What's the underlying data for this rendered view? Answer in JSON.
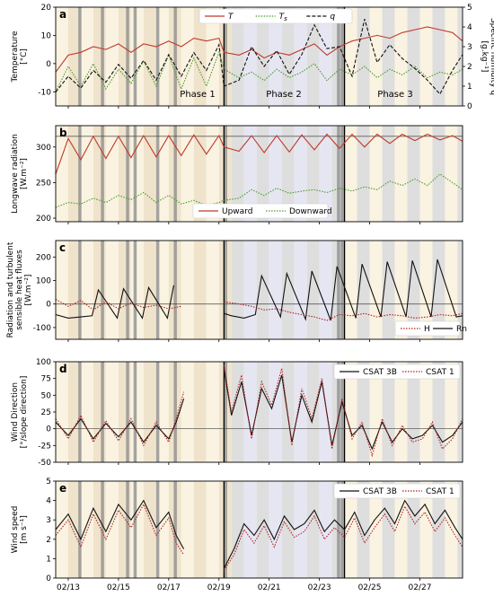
{
  "colors": {
    "red": "#c0392b",
    "green": "#4a9a2f",
    "black": "#111111",
    "darkred_dotted": "#b22222",
    "shade_dark": "#8f8f8f",
    "shade_light_tan": "#efe3cc",
    "shade_cream": "#faf3e1",
    "shade_lavender": "#e6e6f3",
    "shade_grey": "#dedede"
  },
  "x_ticks": [
    "02/13",
    "02/15",
    "02/17",
    "02/19",
    "02/21",
    "02/23",
    "02/25",
    "02/27"
  ],
  "chart_data": [
    {
      "panel": "a",
      "type": "line",
      "ylabel": "Temperature\n[°C]",
      "ylabel2": "Specific humidity q\n[g.kg⁻¹]",
      "ylim": [
        -15,
        20
      ],
      "yticks": [
        -10,
        0,
        10,
        20
      ],
      "ylim2": [
        0,
        5
      ],
      "yticks2": [
        0,
        1,
        2,
        3,
        4,
        5
      ],
      "xlim": [
        12.5,
        28.7
      ],
      "legend": [
        "T",
        "Ts",
        "q"
      ],
      "legend_position": "top-center",
      "annotations": [
        "Phase 1",
        "Phase 2",
        "Phase 3"
      ],
      "series": [
        {
          "name": "T",
          "style": "solid",
          "color": "red",
          "x": [
            12.5,
            13,
            13.5,
            14,
            14.5,
            15,
            15.5,
            16,
            16.5,
            17,
            17.5,
            18,
            18.5,
            19,
            19.2,
            19.8,
            20.3,
            20.8,
            21.3,
            21.8,
            22.3,
            22.8,
            23.3,
            23.8,
            24.3,
            24.8,
            25.3,
            25.8,
            26.3,
            26.8,
            27.3,
            27.8,
            28.3,
            28.7
          ],
          "values": [
            -3,
            3,
            4,
            6,
            5,
            7,
            4,
            7,
            6,
            8,
            6,
            9,
            8,
            9,
            4,
            3,
            5,
            2,
            4,
            3,
            5,
            7,
            3,
            6,
            8,
            9,
            10,
            9,
            11,
            12,
            13,
            12,
            11,
            8
          ]
        },
        {
          "name": "Ts",
          "style": "dotted",
          "color": "green",
          "x": [
            12.5,
            13,
            13.5,
            14,
            14.5,
            15,
            15.5,
            16,
            16.5,
            17,
            17.5,
            18,
            18.5,
            19,
            19.2,
            19.8,
            20.3,
            20.8,
            21.3,
            21.8,
            22.3,
            22.8,
            23.3,
            23.8,
            24.3,
            24.8,
            25.3,
            25.8,
            26.3,
            26.8,
            27.3,
            27.8,
            28.3,
            28.7
          ],
          "values": [
            -10,
            -1,
            -8,
            0,
            -9,
            -2,
            -7,
            1,
            -8,
            3,
            -9,
            2,
            -8,
            4,
            -2,
            -5,
            -3,
            -6,
            -2,
            -5,
            -3,
            0,
            -6,
            -2,
            -4,
            -1,
            -5,
            -2,
            -4,
            -1,
            -5,
            -3,
            -4,
            -2
          ]
        },
        {
          "name": "q",
          "style": "dashed",
          "color": "black",
          "x": [
            12.5,
            13,
            13.5,
            14,
            14.5,
            15,
            15.5,
            16,
            16.5,
            17,
            17.5,
            18,
            18.5,
            19,
            19.2,
            19.8,
            20.3,
            20.8,
            21.3,
            21.8,
            22.3,
            22.8,
            23.3,
            23.8,
            24.3,
            24.8,
            25.3,
            25.8,
            26.3,
            26.8,
            27.3,
            27.8,
            28.3,
            28.7
          ],
          "values": [
            0.7,
            1.5,
            0.9,
            1.8,
            1.2,
            2.1,
            1.4,
            2.3,
            1.3,
            2.6,
            1.5,
            2.7,
            1.8,
            3.1,
            1.0,
            1.3,
            3.0,
            2.0,
            2.8,
            1.6,
            2.6,
            4.1,
            2.9,
            3.0,
            1.5,
            4.4,
            2.2,
            3.1,
            2.4,
            1.9,
            1.3,
            0.6,
            1.8,
            2.6
          ]
        }
      ]
    },
    {
      "panel": "b",
      "type": "line",
      "ylabel": "Longwave radiation\n[W.m⁻²]",
      "ylim": [
        195,
        330
      ],
      "yticks": [
        200,
        250,
        300
      ],
      "xlim": [
        12.5,
        28.7
      ],
      "hline": 315,
      "legend": [
        "Upward",
        "Downward"
      ],
      "legend_position": "bottom-right",
      "series": [
        {
          "name": "Upward",
          "style": "solid",
          "color": "red",
          "x": [
            12.5,
            13,
            13.5,
            14,
            14.5,
            15,
            15.5,
            16,
            16.5,
            17,
            17.5,
            18,
            18.5,
            19,
            19.2,
            19.8,
            20.3,
            20.8,
            21.3,
            21.8,
            22.3,
            22.8,
            23.3,
            23.8,
            24.3,
            24.8,
            25.3,
            25.8,
            26.3,
            26.8,
            27.3,
            27.8,
            28.3,
            28.7
          ],
          "values": [
            262,
            312,
            282,
            315,
            284,
            315,
            285,
            316,
            286,
            316,
            288,
            317,
            290,
            316,
            300,
            294,
            316,
            292,
            316,
            293,
            317,
            296,
            318,
            298,
            318,
            300,
            318,
            305,
            318,
            309,
            318,
            310,
            316,
            308
          ]
        },
        {
          "name": "Downward",
          "style": "dotted",
          "color": "green",
          "x": [
            12.5,
            13,
            13.5,
            14,
            14.5,
            15,
            15.5,
            16,
            16.5,
            17,
            17.5,
            18,
            18.5,
            19,
            19.2,
            19.8,
            20.3,
            20.8,
            21.3,
            21.8,
            22.3,
            22.8,
            23.3,
            23.8,
            24.3,
            24.8,
            25.3,
            25.8,
            26.3,
            26.8,
            27.3,
            27.8,
            28.3,
            28.7
          ],
          "values": [
            215,
            222,
            220,
            228,
            222,
            232,
            226,
            236,
            222,
            232,
            220,
            225,
            218,
            222,
            225,
            228,
            240,
            232,
            242,
            235,
            238,
            240,
            236,
            242,
            238,
            244,
            240,
            252,
            246,
            255,
            246,
            262,
            250,
            240
          ]
        }
      ]
    },
    {
      "panel": "c",
      "type": "line",
      "ylabel": "Radiation and turbulent\nsensible heat fluxes\n[W.m⁻²]",
      "ylim": [
        -150,
        270
      ],
      "yticks": [
        -100,
        0,
        100,
        200
      ],
      "xlim": [
        12.5,
        28.7
      ],
      "hline": 0,
      "legend": [
        "H",
        "Rn"
      ],
      "legend_position": "bottom-right",
      "series": [
        {
          "name": "Rn",
          "style": "solid",
          "color": "black",
          "x": [
            12.5,
            13.0,
            13.5,
            13.95,
            14.2,
            14.95,
            15.2,
            15.95,
            16.2,
            16.95,
            17.2,
            17.95,
            18.2,
            18.95,
            19.2,
            19.5,
            20.0,
            20.45,
            20.7,
            21.45,
            21.7,
            22.45,
            22.7,
            23.45,
            23.7,
            24.45,
            24.7,
            25.45,
            25.7,
            26.45,
            26.7,
            27.45,
            27.7,
            28.45,
            28.7
          ],
          "values": [
            -45,
            -60,
            -55,
            -50,
            60,
            -60,
            65,
            -60,
            70,
            -60,
            80,
            -55,
            100,
            -50,
            -40,
            -50,
            -60,
            -45,
            120,
            -55,
            130,
            -65,
            140,
            -70,
            160,
            -60,
            170,
            -55,
            180,
            -55,
            185,
            -55,
            190,
            -55,
            -50
          ]
        },
        {
          "name": "H",
          "style": "dotted",
          "color": "darkred_dotted",
          "x": [
            12.5,
            13.0,
            13.5,
            14.0,
            14.5,
            15.0,
            15.5,
            16.0,
            16.5,
            17.0,
            17.5,
            18.0,
            18.5,
            19.0,
            19.2,
            19.8,
            20.3,
            20.8,
            21.3,
            21.8,
            22.3,
            22.8,
            23.3,
            23.8,
            24.3,
            24.8,
            25.3,
            25.8,
            26.3,
            26.8,
            27.3,
            27.8,
            28.3,
            28.7
          ],
          "values": [
            20,
            -10,
            15,
            -25,
            10,
            -20,
            5,
            -15,
            -5,
            -20,
            -10,
            -15,
            -5,
            -20,
            10,
            0,
            -10,
            -25,
            -20,
            -35,
            -45,
            -55,
            -70,
            -45,
            -50,
            -40,
            -55,
            -45,
            -50,
            -60,
            -55,
            -45,
            -50,
            -40
          ]
        }
      ]
    },
    {
      "panel": "d",
      "type": "line",
      "ylabel": "Wind Direction\n[°/slope direction]",
      "ylim": [
        -50,
        100
      ],
      "yticks": [
        -50,
        -25,
        0,
        25,
        50,
        75,
        100
      ],
      "xlim": [
        12.5,
        28.7
      ],
      "hline": 0,
      "legend": [
        "CSAT 3B",
        "CSAT 1"
      ],
      "legend_position": "top-right",
      "series": [
        {
          "name": "CSAT 3B",
          "style": "solid",
          "color": "black",
          "x": [
            12.5,
            13,
            13.5,
            14,
            14.5,
            15,
            15.5,
            16,
            16.5,
            17,
            17.3,
            17.6,
            19.2,
            19.5,
            19.9,
            20.3,
            20.7,
            21.1,
            21.5,
            21.9,
            22.3,
            22.7,
            23.1,
            23.5,
            23.9,
            24.3,
            24.7,
            25.1,
            25.5,
            25.9,
            26.3,
            26.7,
            27.1,
            27.5,
            27.9,
            28.3,
            28.7
          ],
          "values": [
            10,
            -10,
            15,
            -15,
            8,
            -12,
            10,
            -20,
            5,
            -15,
            10,
            45,
            90,
            20,
            70,
            -10,
            60,
            30,
            80,
            -20,
            50,
            10,
            70,
            -25,
            40,
            -10,
            5,
            -30,
            10,
            -20,
            0,
            -15,
            -10,
            5,
            -20,
            -10,
            10
          ]
        },
        {
          "name": "CSAT 1",
          "style": "dotted",
          "color": "darkred_dotted",
          "x": [
            12.5,
            13,
            13.5,
            14,
            14.5,
            15,
            15.5,
            16,
            16.5,
            17,
            17.3,
            17.6,
            19.2,
            19.5,
            19.9,
            20.3,
            20.7,
            21.1,
            21.5,
            21.9,
            22.3,
            22.7,
            23.1,
            23.5,
            23.9,
            24.3,
            24.7,
            25.1,
            25.5,
            25.9,
            26.3,
            26.7,
            27.1,
            27.5,
            27.9,
            28.3,
            28.7
          ],
          "values": [
            15,
            -15,
            20,
            -20,
            12,
            -18,
            15,
            -25,
            10,
            -20,
            15,
            55,
            95,
            25,
            80,
            -15,
            70,
            35,
            90,
            -25,
            60,
            15,
            75,
            -30,
            45,
            -15,
            10,
            -40,
            15,
            -25,
            5,
            -20,
            -15,
            10,
            -30,
            -15,
            15
          ]
        }
      ]
    },
    {
      "panel": "e",
      "type": "line",
      "ylabel": "Wind speed\n[m s⁻¹]",
      "ylim": [
        0,
        5
      ],
      "yticks": [
        0,
        1,
        2,
        3,
        4,
        5
      ],
      "xlim": [
        12.5,
        28.7
      ],
      "legend": [
        "CSAT 3B",
        "CSAT 1"
      ],
      "legend_position": "top-right",
      "series": [
        {
          "name": "CSAT 3B",
          "style": "solid",
          "color": "black",
          "x": [
            12.5,
            13,
            13.5,
            14,
            14.5,
            15,
            15.5,
            16,
            16.5,
            17,
            17.3,
            17.6,
            19.2,
            19.6,
            20,
            20.4,
            20.8,
            21.2,
            21.6,
            22,
            22.4,
            22.8,
            23.2,
            23.6,
            24,
            24.4,
            24.8,
            25.2,
            25.6,
            26,
            26.4,
            26.8,
            27.2,
            27.6,
            28,
            28.4,
            28.7
          ],
          "values": [
            2.5,
            3.3,
            2.0,
            3.6,
            2.4,
            3.8,
            3.0,
            4.0,
            2.6,
            3.4,
            2.2,
            1.5,
            0.5,
            1.5,
            2.8,
            2.2,
            3.0,
            2.0,
            3.2,
            2.5,
            2.8,
            3.5,
            2.4,
            3.0,
            2.5,
            3.4,
            2.2,
            3.0,
            3.6,
            2.8,
            4.0,
            3.2,
            3.8,
            2.8,
            3.5,
            2.6,
            2.0
          ]
        },
        {
          "name": "CSAT 1",
          "style": "dotted",
          "color": "darkred_dotted",
          "x": [
            12.5,
            13,
            13.5,
            14,
            14.5,
            15,
            15.5,
            16,
            16.5,
            17,
            17.3,
            17.6,
            19.2,
            19.6,
            20,
            20.4,
            20.8,
            21.2,
            21.6,
            22,
            22.4,
            22.8,
            23.2,
            23.6,
            24,
            24.4,
            24.8,
            25.2,
            25.6,
            26,
            26.4,
            26.8,
            27.2,
            27.6,
            28,
            28.4,
            28.7
          ],
          "values": [
            2.2,
            3.0,
            1.6,
            3.3,
            2.0,
            3.5,
            2.6,
            3.8,
            2.2,
            3.1,
            1.8,
            1.2,
            0.4,
            1.2,
            2.5,
            1.8,
            2.7,
            1.6,
            2.9,
            2.1,
            2.4,
            3.2,
            2.0,
            2.6,
            2.1,
            3.1,
            1.8,
            2.6,
            3.3,
            2.4,
            3.7,
            2.8,
            3.4,
            2.4,
            3.1,
            2.2,
            1.6
          ]
        }
      ]
    }
  ]
}
